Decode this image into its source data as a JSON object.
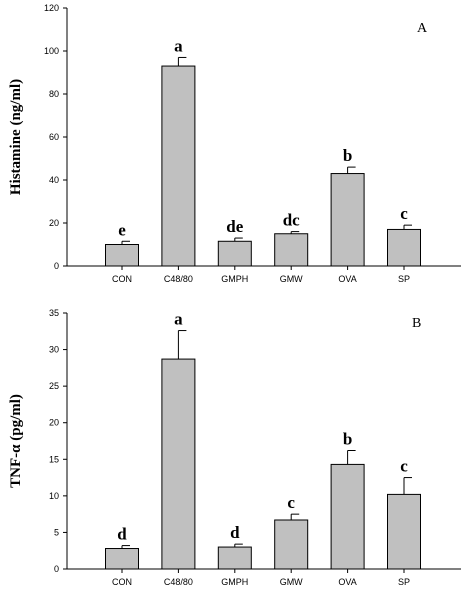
{
  "chart_data": [
    {
      "type": "bar",
      "panel_label": "A",
      "ylabel": "Histamine (ng/ml)",
      "xlabel": "",
      "categories": [
        "CON",
        "C48/80",
        "GMPH",
        "GMW",
        "OVA",
        "SP"
      ],
      "values": [
        10,
        93,
        11.5,
        15,
        43,
        17
      ],
      "errors": [
        1.5,
        4,
        1.5,
        1,
        3,
        2
      ],
      "significance": [
        "e",
        "a",
        "de",
        "dc",
        "b",
        "c"
      ],
      "ylim": [
        0,
        120
      ],
      "yticks": [
        "0",
        "20",
        "40",
        "60",
        "80",
        "100",
        "120"
      ],
      "grid": false,
      "bar_color": "#c0c0c0"
    },
    {
      "type": "bar",
      "panel_label": "B",
      "ylabel": "TNF-α (pg/ml)",
      "xlabel": "",
      "categories": [
        "CON",
        "C48/80",
        "GMPH",
        "GMW",
        "OVA",
        "SP"
      ],
      "values": [
        2.8,
        28.7,
        3.0,
        6.7,
        14.3,
        10.2
      ],
      "errors": [
        0.4,
        3.9,
        0.4,
        0.8,
        1.9,
        2.3
      ],
      "significance": [
        "d",
        "a",
        "d",
        "c",
        "b",
        "c"
      ],
      "ylim": [
        0,
        35
      ],
      "yticks": [
        "0",
        "5",
        "10",
        "15",
        "20",
        "25",
        "30",
        "35"
      ],
      "grid": false,
      "bar_color": "#c0c0c0"
    }
  ]
}
